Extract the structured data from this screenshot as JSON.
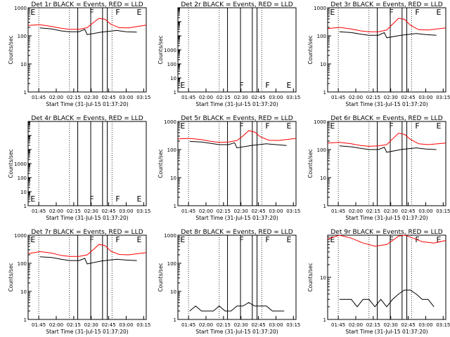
{
  "chart_data": [
    {
      "type": "line",
      "title": "Det 1r BLACK = Events, RED = LLD",
      "xlabel": "Start Time (31-Jul-15 01:37:20)",
      "ylabel": "Counts/sec",
      "yscale": "log",
      "ylim_exp": [
        0,
        3
      ],
      "ytick_labels": [
        "1",
        "10",
        "100",
        "1000"
      ],
      "xtick_labels": [
        "01:45",
        "02:00",
        "02:15",
        "02:30",
        "02:45",
        "03:00",
        "03:15"
      ],
      "markers": [
        "E",
        "F",
        "F",
        "E"
      ],
      "series": [
        {
          "color": "#ff0000",
          "x": [
            0,
            0.1,
            0.2,
            0.28,
            0.35,
            0.43,
            0.5,
            0.55,
            0.6,
            0.65,
            0.7,
            0.77,
            0.85,
            1
          ],
          "values": [
            235,
            250,
            215,
            185,
            170,
            170,
            195,
            290,
            420,
            390,
            260,
            195,
            190,
            240
          ]
        },
        {
          "color": "#000000",
          "x": [
            0.1,
            0.2,
            0.28,
            0.35,
            0.43,
            0.48,
            0.5,
            0.62,
            0.75,
            0.83,
            0.92
          ],
          "values": [
            190,
            175,
            150,
            140,
            140,
            170,
            110,
            135,
            155,
            140,
            135
          ]
        }
      ]
    },
    {
      "type": "line",
      "title": "Det 2r BLACK = Events, RED = LLD",
      "xlabel": "Start Time (31-Jul-15 01:37:20)",
      "ylabel": "Counts/sec",
      "yscale": "log",
      "ylim_exp": [
        0,
        6
      ],
      "ytick_labels": [
        "1",
        "10",
        "100",
        "1000"
      ],
      "xtick_labels": [
        "01:45",
        "02:00",
        "02:15",
        "02:30",
        "02:45",
        "03:00",
        "03:15"
      ],
      "markers": [
        "E",
        "F",
        "F",
        "E"
      ],
      "series": []
    },
    {
      "type": "line",
      "title": "Det 3r BLACK = Events, RED = LLD",
      "xlabel": "Start Time (31-Jul-15 01:37:20)",
      "ylabel": "Counts/sec",
      "yscale": "log",
      "ylim_exp": [
        0,
        3
      ],
      "ytick_labels": [
        "1",
        "10",
        "100",
        "1000"
      ],
      "xtick_labels": [
        "01:45",
        "02:00",
        "02:15",
        "02:30",
        "02:45",
        "03:00",
        "03:15"
      ],
      "markers": [
        "E",
        "F",
        "F",
        "E"
      ],
      "series": [
        {
          "color": "#ff0000",
          "x": [
            0,
            0.1,
            0.2,
            0.28,
            0.35,
            0.43,
            0.5,
            0.55,
            0.6,
            0.65,
            0.7,
            0.77,
            0.85,
            1
          ],
          "values": [
            180,
            200,
            175,
            150,
            140,
            140,
            160,
            260,
            420,
            390,
            240,
            165,
            160,
            190
          ]
        },
        {
          "color": "#000000",
          "x": [
            0.1,
            0.2,
            0.28,
            0.35,
            0.43,
            0.48,
            0.5,
            0.62,
            0.75,
            0.83,
            0.92
          ],
          "values": [
            140,
            130,
            115,
            105,
            105,
            130,
            85,
            105,
            120,
            110,
            105
          ]
        }
      ]
    },
    {
      "type": "line",
      "title": "Det 4r BLACK = Events, RED = LLD",
      "xlabel": "Start Time (31-Jul-15 01:37:20)",
      "ylabel": "Counts/sec",
      "yscale": "log",
      "ylim_exp": [
        0,
        6
      ],
      "ytick_labels": [
        "1",
        "10",
        "100",
        "1000"
      ],
      "xtick_labels": [
        "01:45",
        "02:00",
        "02:15",
        "02:30",
        "02:45",
        "03:00",
        "03:15"
      ],
      "markers": [
        "E",
        "F",
        "F",
        "E"
      ],
      "series": []
    },
    {
      "type": "line",
      "title": "Det 5r BLACK = Events, RED = LLD",
      "xlabel": "Start Time (31-Jul-15 01:37:20)",
      "ylabel": "Counts/sec",
      "yscale": "log",
      "ylim_exp": [
        0,
        3
      ],
      "ytick_labels": [
        "1",
        "10",
        "100",
        "1000"
      ],
      "xtick_labels": [
        "01:45",
        "02:00",
        "02:15",
        "02:30",
        "02:45",
        "03:00",
        "03:15"
      ],
      "markers": [
        "E",
        "F",
        "F",
        "E"
      ],
      "series": [
        {
          "color": "#ff0000",
          "x": [
            0,
            0.1,
            0.2,
            0.28,
            0.35,
            0.43,
            0.5,
            0.55,
            0.6,
            0.65,
            0.7,
            0.77,
            0.85,
            1
          ],
          "values": [
            240,
            250,
            225,
            195,
            180,
            185,
            210,
            300,
            470,
            420,
            280,
            215,
            210,
            250
          ]
        },
        {
          "color": "#000000",
          "x": [
            0.1,
            0.2,
            0.28,
            0.35,
            0.43,
            0.48,
            0.5,
            0.62,
            0.75,
            0.83,
            0.92
          ],
          "values": [
            195,
            185,
            165,
            150,
            150,
            175,
            115,
            140,
            160,
            150,
            140
          ]
        }
      ]
    },
    {
      "type": "line",
      "title": "Det 6r BLACK = Events, RED = LLD",
      "xlabel": "Start Time (31-Jul-15 01:37:20)",
      "ylabel": "Counts/sec",
      "yscale": "log",
      "ylim_exp": [
        0,
        3
      ],
      "ytick_labels": [
        "1",
        "10",
        "100",
        "1000"
      ],
      "xtick_labels": [
        "01:45",
        "02:00",
        "02:15",
        "02:30",
        "02:45",
        "03:00",
        "03:15"
      ],
      "markers": [
        "E",
        "F",
        "F",
        "E"
      ],
      "series": [
        {
          "color": "#ff0000",
          "x": [
            0,
            0.1,
            0.2,
            0.28,
            0.35,
            0.43,
            0.5,
            0.55,
            0.6,
            0.65,
            0.7,
            0.77,
            0.85,
            1
          ],
          "values": [
            170,
            180,
            160,
            140,
            130,
            135,
            150,
            240,
            380,
            350,
            230,
            160,
            150,
            170
          ]
        },
        {
          "color": "#000000",
          "x": [
            0.1,
            0.2,
            0.28,
            0.35,
            0.43,
            0.48,
            0.5,
            0.62,
            0.75,
            0.83,
            0.92
          ],
          "values": [
            135,
            125,
            110,
            100,
            100,
            120,
            80,
            100,
            115,
            105,
            100
          ]
        }
      ]
    },
    {
      "type": "line",
      "title": "Det 7r BLACK = Events, RED = LLD",
      "xlabel": "Start Time (31-Jul-15 01:37:20)",
      "ylabel": "Counts/sec",
      "yscale": "log",
      "ylim_exp": [
        0,
        3
      ],
      "ytick_labels": [
        "1",
        "10",
        "100",
        "1000"
      ],
      "xtick_labels": [
        "01:45",
        "02:00",
        "02:15",
        "02:30",
        "02:45",
        "03:00",
        "03:15"
      ],
      "markers": [
        "E",
        "F",
        "F",
        "E"
      ],
      "series": [
        {
          "color": "#ff0000",
          "x": [
            0,
            0.1,
            0.2,
            0.28,
            0.35,
            0.43,
            0.5,
            0.55,
            0.6,
            0.65,
            0.7,
            0.77,
            0.85,
            1
          ],
          "values": [
            220,
            260,
            230,
            190,
            175,
            175,
            200,
            300,
            470,
            430,
            270,
            205,
            200,
            240
          ]
        },
        {
          "color": "#000000",
          "x": [
            0.1,
            0.2,
            0.28,
            0.35,
            0.43,
            0.48,
            0.5,
            0.62,
            0.75,
            0.83,
            0.92
          ],
          "values": [
            170,
            160,
            140,
            125,
            125,
            150,
            95,
            120,
            140,
            130,
            125
          ]
        }
      ]
    },
    {
      "type": "line",
      "title": "Det 8r BLACK = Events, RED = LLD",
      "xlabel": "Start Time (31-Jul-15 01:37:20)",
      "ylabel": "Counts/sec",
      "yscale": "log",
      "ylim_exp": [
        0,
        3
      ],
      "ytick_labels": [
        "1",
        "10",
        "100",
        "1000"
      ],
      "xtick_labels": [
        "01:45",
        "02:00",
        "02:15",
        "02:30",
        "02:45",
        "03:00",
        "03:15"
      ],
      "markers": [
        "E",
        "F",
        "F",
        "E"
      ],
      "series": [
        {
          "color": "#000000",
          "x": [
            0.1,
            0.15,
            0.2,
            0.25,
            0.3,
            0.35,
            0.4,
            0.45,
            0.5,
            0.55,
            0.6,
            0.65,
            0.7,
            0.75,
            0.8,
            0.85,
            0.9
          ],
          "values": [
            2,
            3,
            2,
            2,
            2,
            3,
            2,
            2,
            3,
            3,
            4,
            3,
            3,
            3,
            2,
            2,
            2
          ]
        }
      ]
    },
    {
      "type": "line",
      "title": "Det 9r BLACK = Events, RED = LLD",
      "xlabel": "Start Time (31-Jul-15 01:37:20)",
      "ylabel": "Counts/sec",
      "yscale": "log",
      "ylim_exp": [
        0,
        2
      ],
      "ytick_labels": [
        "1",
        "10"
      ],
      "xtick_labels": [
        "01:45",
        "02:00",
        "02:15",
        "02:30",
        "02:45",
        "03:00",
        "03:15"
      ],
      "markers": [
        "E",
        "F",
        "F",
        "E"
      ],
      "series": [
        {
          "color": "#ff0000",
          "x": [
            0,
            0.05,
            0.1,
            0.2,
            0.3,
            0.4,
            0.5,
            0.55,
            0.6,
            0.65,
            0.7,
            0.8,
            0.9,
            1
          ],
          "values": [
            80,
            90,
            100,
            85,
            65,
            55,
            60,
            75,
            95,
            100,
            90,
            70,
            65,
            75
          ]
        },
        {
          "color": "#000000",
          "x": [
            0.1,
            0.15,
            0.2,
            0.25,
            0.3,
            0.35,
            0.4,
            0.45,
            0.5,
            0.55,
            0.6,
            0.65,
            0.7,
            0.75,
            0.8,
            0.85,
            0.9
          ],
          "values": [
            3,
            3,
            3,
            2,
            3,
            3,
            2,
            3,
            2,
            3,
            4,
            5,
            5,
            4,
            3,
            3,
            2
          ]
        }
      ]
    }
  ]
}
